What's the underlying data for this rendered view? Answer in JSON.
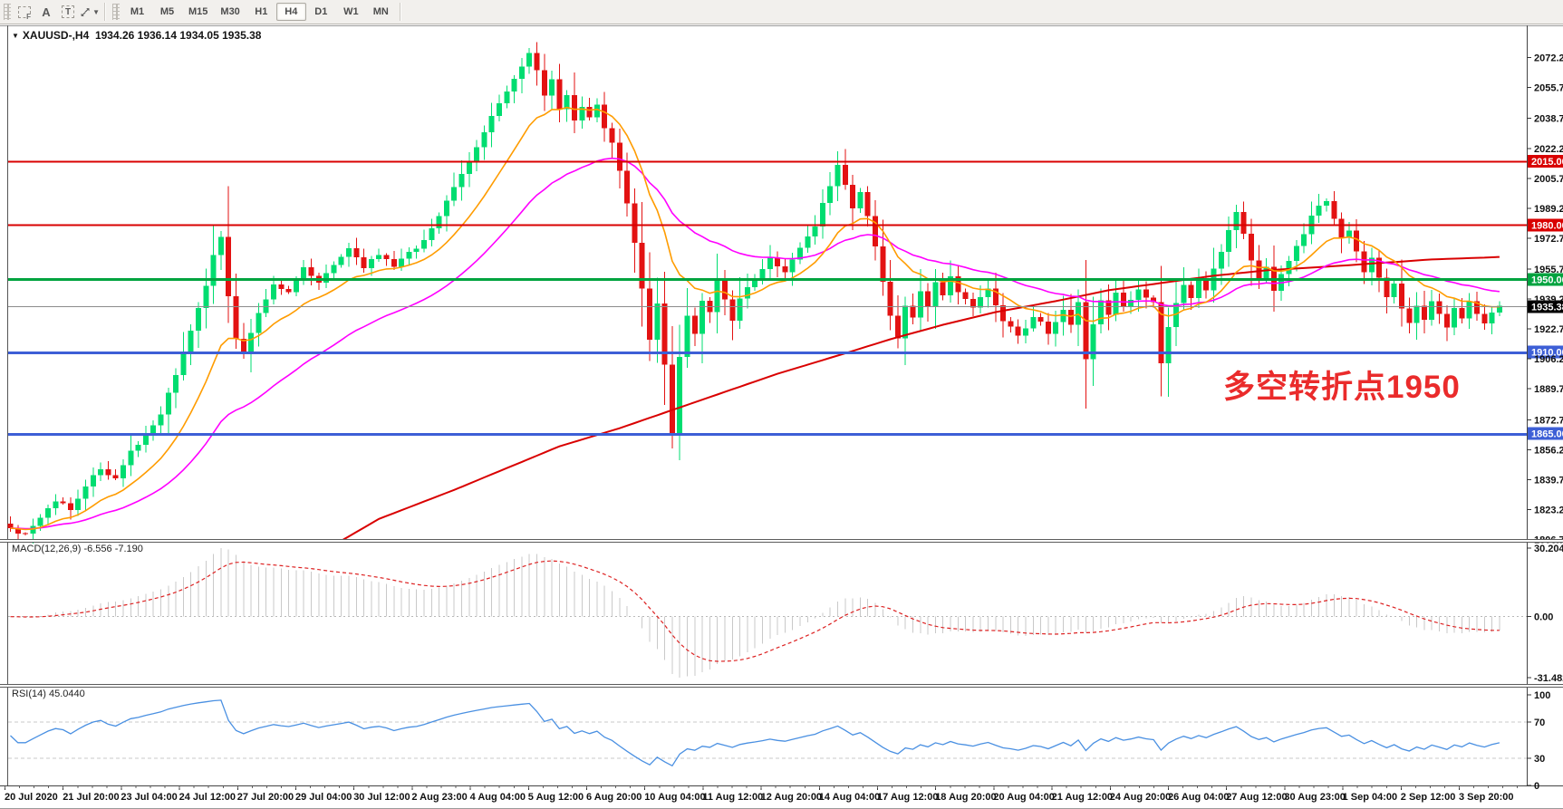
{
  "toolbar": {
    "tools": {
      "f_label": "F",
      "a_label": "A",
      "t_label": "T"
    },
    "timeframes": [
      "M1",
      "M5",
      "M15",
      "M30",
      "H1",
      "H4",
      "D1",
      "W1",
      "MN"
    ],
    "active_timeframe": "H4"
  },
  "title": {
    "symbol_period": "XAUUSD-,H4",
    "ohlc": "1934.26 1936.14 1934.05 1935.38",
    "dropdown_glyph": "▼"
  },
  "chart_data": {
    "type": "candlestick",
    "symbol": "XAUUSD-",
    "timeframe": "H4",
    "ohlc_display": {
      "open": 1934.26,
      "high": 1936.14,
      "low": 1934.05,
      "close": 1935.38
    },
    "colors": {
      "bull": "#00dd70",
      "bear": "#e31212",
      "ma_fast": "#ff9c00",
      "ma_medium": "#ff00ff",
      "ma_slow": "#d90000",
      "macd_hist": "#c9c9c9",
      "macd_signal": "#dd2222",
      "rsi_line": "#4a90e2",
      "level_red": "#d90000",
      "level_green": "#00a33f",
      "level_blue": "#3d5fd6",
      "current_line": "#8c8c8c",
      "current_tag_bg": "#000000"
    },
    "price_axis": {
      "ticks": [
        "2072.20",
        "2055.70",
        "2038.70",
        "2022.20",
        "2005.70",
        "1989.20",
        "1972.70",
        "1955.70",
        "1939.20",
        "1922.70",
        "1906.20",
        "1889.70",
        "1872.70",
        "1856.20",
        "1839.70",
        "1823.20",
        "1806.70"
      ],
      "range_top": 2089.0,
      "range_bottom": 1806.2
    },
    "horizontal_lines": [
      {
        "value": 2015.0,
        "label": "2015.00",
        "color": "#d90000",
        "width": 2
      },
      {
        "value": 1980.0,
        "label": "1980.00",
        "color": "#d90000",
        "width": 2
      },
      {
        "value": 1950.0,
        "label": "1950.00",
        "color": "#00a33f",
        "width": 3
      },
      {
        "value": 1910.0,
        "label": "1910.00",
        "color": "#3d5fd6",
        "width": 3
      },
      {
        "value": 1865.0,
        "label": "1865.00",
        "color": "#3d5fd6",
        "width": 3
      }
    ],
    "current_price": {
      "value": 1935.38,
      "label": "1935.38"
    },
    "candle_count": 199,
    "candle_close_keypoints": [
      [
        0,
        1813
      ],
      [
        2,
        1809
      ],
      [
        4,
        1819
      ],
      [
        6,
        1828
      ],
      [
        8,
        1824
      ],
      [
        10,
        1836
      ],
      [
        12,
        1846
      ],
      [
        14,
        1840
      ],
      [
        16,
        1855
      ],
      [
        18,
        1864
      ],
      [
        20,
        1876
      ],
      [
        22,
        1897
      ],
      [
        24,
        1921
      ],
      [
        26,
        1947
      ],
      [
        27,
        1963
      ],
      [
        28,
        1974
      ],
      [
        29,
        1941
      ],
      [
        30,
        1917
      ],
      [
        31,
        1908
      ],
      [
        33,
        1931
      ],
      [
        35,
        1947
      ],
      [
        37,
        1942
      ],
      [
        39,
        1957
      ],
      [
        41,
        1949
      ],
      [
        43,
        1957
      ],
      [
        45,
        1966
      ],
      [
        47,
        1957
      ],
      [
        49,
        1964
      ],
      [
        51,
        1957
      ],
      [
        53,
        1964
      ],
      [
        55,
        1972
      ],
      [
        57,
        1985
      ],
      [
        59,
        2000
      ],
      [
        61,
        2015
      ],
      [
        63,
        2031
      ],
      [
        65,
        2047
      ],
      [
        67,
        2061
      ],
      [
        69,
        2074
      ],
      [
        70,
        2066
      ],
      [
        71,
        2052
      ],
      [
        72,
        2060
      ],
      [
        73,
        2044
      ],
      [
        74,
        2052
      ],
      [
        75,
        2037
      ],
      [
        76,
        2046
      ],
      [
        77,
        2039
      ],
      [
        78,
        2047
      ],
      [
        79,
        2033
      ],
      [
        80,
        2025
      ],
      [
        81,
        2009
      ],
      [
        82,
        1991
      ],
      [
        83,
        1971
      ],
      [
        84,
        1945
      ],
      [
        85,
        1917
      ],
      [
        86,
        1936
      ],
      [
        87,
        1904
      ],
      [
        88,
        1866
      ],
      [
        89,
        1907
      ],
      [
        90,
        1930
      ],
      [
        91,
        1919
      ],
      [
        92,
        1938
      ],
      [
        93,
        1931
      ],
      [
        94,
        1950
      ],
      [
        95,
        1939
      ],
      [
        96,
        1927
      ],
      [
        97,
        1940
      ],
      [
        99,
        1951
      ],
      [
        101,
        1962
      ],
      [
        103,
        1954
      ],
      [
        105,
        1968
      ],
      [
        107,
        1980
      ],
      [
        109,
        2002
      ],
      [
        110,
        2012
      ],
      [
        111,
        2003
      ],
      [
        112,
        1990
      ],
      [
        113,
        1999
      ],
      [
        114,
        1984
      ],
      [
        115,
        1968
      ],
      [
        116,
        1949
      ],
      [
        117,
        1929
      ],
      [
        118,
        1918
      ],
      [
        119,
        1936
      ],
      [
        120,
        1928
      ],
      [
        121,
        1944
      ],
      [
        122,
        1936
      ],
      [
        123,
        1949
      ],
      [
        124,
        1942
      ],
      [
        125,
        1952
      ],
      [
        126,
        1943
      ],
      [
        128,
        1934
      ],
      [
        130,
        1945
      ],
      [
        132,
        1928
      ],
      [
        134,
        1918
      ],
      [
        136,
        1930
      ],
      [
        138,
        1921
      ],
      [
        140,
        1934
      ],
      [
        141,
        1926
      ],
      [
        142,
        1938
      ],
      [
        143,
        1906
      ],
      [
        144,
        1926
      ],
      [
        145,
        1938
      ],
      [
        146,
        1931
      ],
      [
        147,
        1942
      ],
      [
        148,
        1935
      ],
      [
        150,
        1944
      ],
      [
        152,
        1938
      ],
      [
        153,
        1904
      ],
      [
        154,
        1924
      ],
      [
        155,
        1936
      ],
      [
        156,
        1946
      ],
      [
        157,
        1940
      ],
      [
        158,
        1950
      ],
      [
        159,
        1944
      ],
      [
        160,
        1956
      ],
      [
        161,
        1966
      ],
      [
        162,
        1978
      ],
      [
        163,
        1988
      ],
      [
        164,
        1975
      ],
      [
        165,
        1960
      ],
      [
        166,
        1950
      ],
      [
        167,
        1958
      ],
      [
        168,
        1944
      ],
      [
        169,
        1952
      ],
      [
        170,
        1960
      ],
      [
        171,
        1968
      ],
      [
        172,
        1976
      ],
      [
        173,
        1984
      ],
      [
        174,
        1990
      ],
      [
        175,
        1992
      ],
      [
        176,
        1984
      ],
      [
        177,
        1972
      ],
      [
        178,
        1978
      ],
      [
        179,
        1965
      ],
      [
        180,
        1955
      ],
      [
        181,
        1962
      ],
      [
        182,
        1950
      ],
      [
        183,
        1940
      ],
      [
        184,
        1947
      ],
      [
        185,
        1934
      ],
      [
        186,
        1926
      ],
      [
        187,
        1935
      ],
      [
        188,
        1928
      ],
      [
        189,
        1938
      ],
      [
        190,
        1931
      ],
      [
        191,
        1924
      ],
      [
        192,
        1934
      ],
      [
        193,
        1929
      ],
      [
        194,
        1937
      ],
      [
        195,
        1930
      ],
      [
        196,
        1926
      ],
      [
        197,
        1932
      ],
      [
        198,
        1935.4
      ]
    ],
    "wick_extremes": [
      [
        69,
        "high",
        2075.2
      ],
      [
        88,
        "low",
        1862.5
      ],
      [
        143,
        "low",
        1901.0
      ],
      [
        153,
        "low",
        1899.0
      ]
    ],
    "moving_averages": {
      "fast": {
        "period": 13,
        "color": "#ff9c00"
      },
      "medium": {
        "period": 34,
        "color": "#ff00ff"
      },
      "slow_keypoints": [
        [
          44,
          1806
        ],
        [
          49,
          1818
        ],
        [
          59,
          1834
        ],
        [
          66,
          1846
        ],
        [
          73,
          1858
        ],
        [
          81,
          1868
        ],
        [
          88,
          1878
        ],
        [
          95,
          1888
        ],
        [
          102,
          1898
        ],
        [
          110,
          1908
        ],
        [
          117,
          1917
        ],
        [
          124,
          1925
        ],
        [
          131,
          1932
        ],
        [
          139,
          1938
        ],
        [
          146,
          1944
        ],
        [
          153,
          1948
        ],
        [
          160,
          1952
        ],
        [
          167,
          1955
        ],
        [
          175,
          1957
        ],
        [
          182,
          1959
        ],
        [
          189,
          1961
        ],
        [
          196,
          1962
        ],
        [
          198,
          1962.4
        ]
      ]
    },
    "annotation": {
      "text": "多空转折点1950",
      "color": "#ea2b2b"
    },
    "macd": {
      "label": "MACD(12,26,9) -6.556 -7.190",
      "params": [
        12,
        26,
        9
      ],
      "value": -6.556,
      "signal_value": -7.19,
      "axis_ticks": [
        "30.204",
        "0.00",
        "-31.482"
      ]
    },
    "rsi": {
      "label": "RSI(14) 45.0440",
      "period": 14,
      "value": 45.044,
      "axis_ticks": [
        "100",
        "70",
        "30",
        "0"
      ],
      "levels": [
        70,
        30
      ]
    },
    "x_axis_labels": [
      "20 Jul 2020",
      "21 Jul 20:00",
      "23 Jul 04:00",
      "24 Jul 12:00",
      "27 Jul 20:00",
      "29 Jul 04:00",
      "30 Jul 12:00",
      "2 Aug 23:00",
      "4 Aug 04:00",
      "5 Aug 12:00",
      "6 Aug 20:00",
      "10 Aug 04:00",
      "11 Aug 12:00",
      "12 Aug 20:00",
      "14 Aug 04:00",
      "17 Aug 12:00",
      "18 Aug 20:00",
      "20 Aug 04:00",
      "21 Aug 12:00",
      "24 Aug 20:00",
      "26 Aug 04:00",
      "27 Aug 12:00",
      "30 Aug 23:00",
      "1 Sep 04:00",
      "2 Sep 12:00",
      "3 Sep 20:00"
    ]
  }
}
